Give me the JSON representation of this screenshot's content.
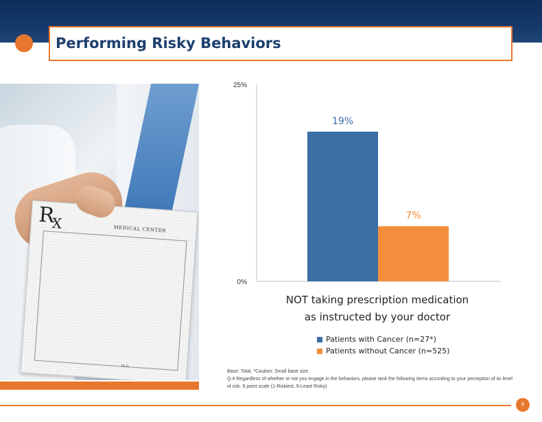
{
  "slide": {
    "title": "Performing Risky Behaviors",
    "page_number": "8"
  },
  "photo": {
    "rx_r": "R",
    "rx_x": "X",
    "medical_center": "MEDICAL CENTER",
    "md": "M.D."
  },
  "colors": {
    "orange": "#e8772e",
    "navy": "#1c3f6e",
    "series_cancer": "#3a6ea5",
    "series_no_cancer": "#f28e3c"
  },
  "chart_data": {
    "type": "bar",
    "categories": [
      "NOT taking prescription medication as instructed by your doctor"
    ],
    "category_lines": [
      "NOT taking prescription medication",
      "as instructed by your doctor"
    ],
    "series": [
      {
        "name": "Patients with Cancer (n=27*)",
        "values": [
          19
        ],
        "label": "19%",
        "color": "#3a6ea5"
      },
      {
        "name": "Patients without Cancer (n=525)",
        "values": [
          7
        ],
        "label": "7%",
        "color": "#f28e3c"
      }
    ],
    "ylim": [
      0,
      25
    ],
    "yticks": [
      "0%",
      "25%"
    ],
    "legend": "bottom",
    "grid": false
  },
  "footnote": {
    "line1": "Base: Total. *Caution: Small base size.",
    "line2": "Q.4 Regardless of whether or not you engage in the behaviors, please rank the following items according to your perception of its level of risk. 9 point scale (1-Riskiest, 9-Least Risky)"
  }
}
